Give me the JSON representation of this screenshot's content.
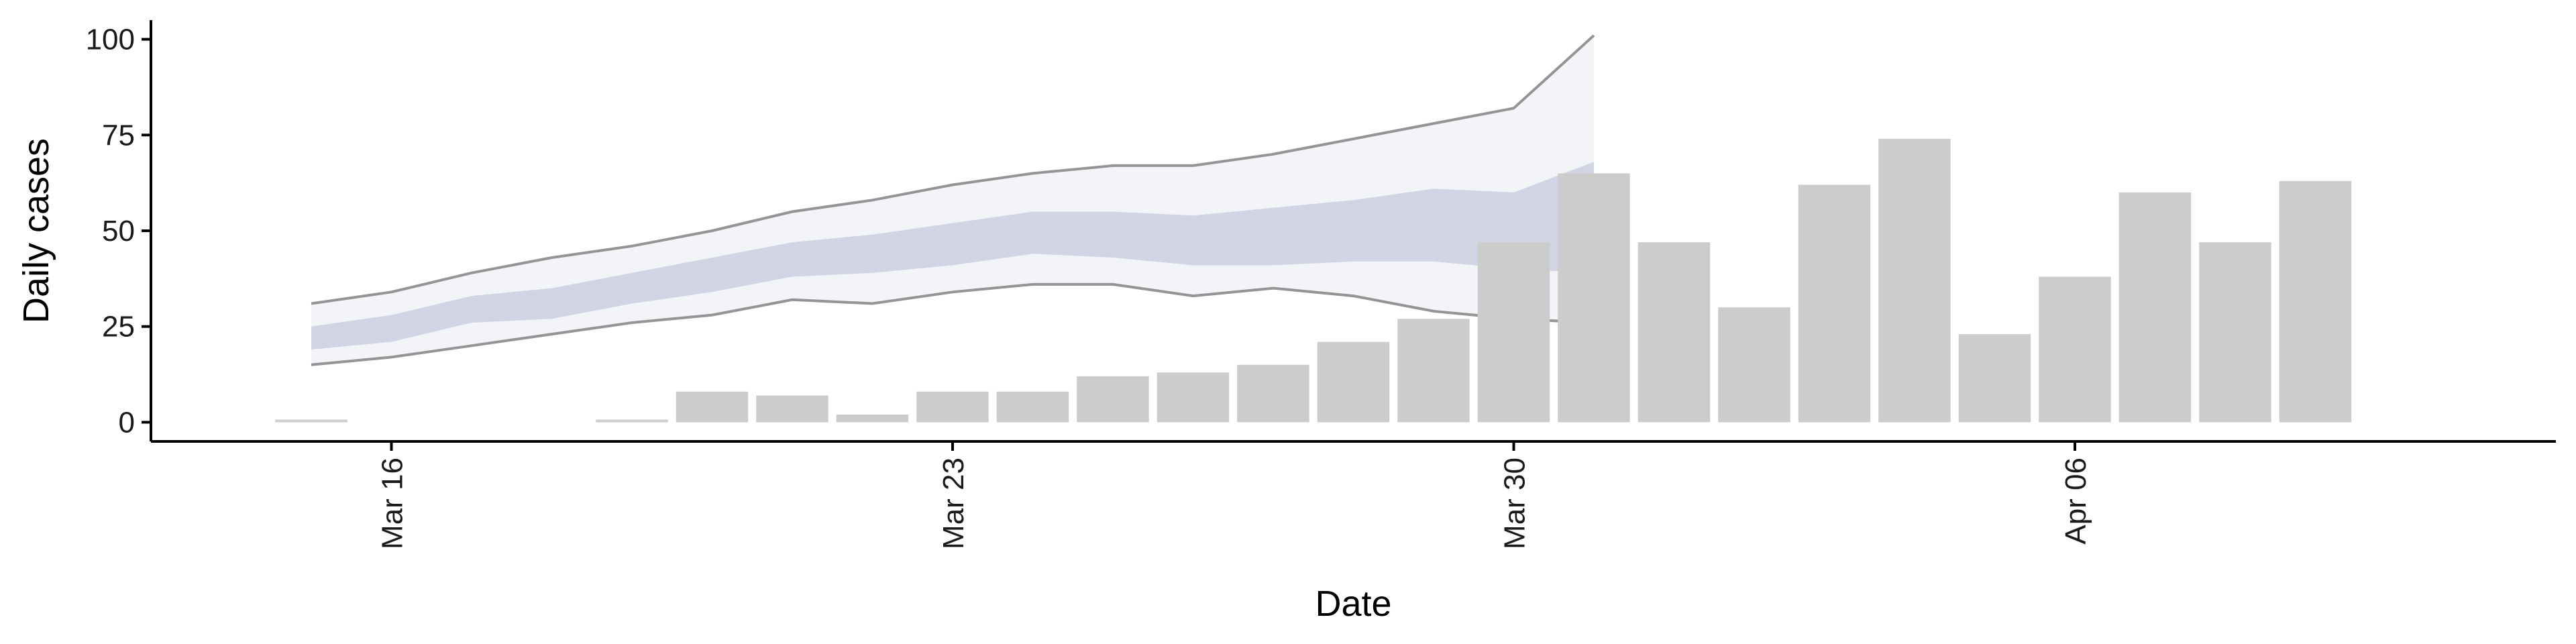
{
  "chart_data": {
    "type": "bar",
    "xlabel": "Date",
    "ylabel": "Daily cases",
    "ylim": [
      -5,
      105
    ],
    "yticks": [
      0,
      25,
      50,
      75,
      100
    ],
    "xticks": [
      {
        "date": "2020-03-16",
        "label": "Mar 16"
      },
      {
        "date": "2020-03-23",
        "label": "Mar 23"
      },
      {
        "date": "2020-03-30",
        "label": "Mar 30"
      },
      {
        "date": "2020-04-06",
        "label": "Apr 06"
      }
    ],
    "xlim": [
      "2020-03-13",
      "2020-04-12"
    ],
    "grid": false,
    "colors": {
      "bars": "#cccccc",
      "outer_band": "#eef0f5",
      "inner_band": "#c5cade",
      "band_lines": "#8a8a8a",
      "axis": "#000000"
    },
    "bars": [
      {
        "date": "2020-03-15",
        "value": 0
      },
      {
        "date": "2020-03-19",
        "value": 0
      },
      {
        "date": "2020-03-20",
        "value": 8
      },
      {
        "date": "2020-03-21",
        "value": 7
      },
      {
        "date": "2020-03-22",
        "value": 2
      },
      {
        "date": "2020-03-23",
        "value": 8
      },
      {
        "date": "2020-03-24",
        "value": 8
      },
      {
        "date": "2020-03-25",
        "value": 12
      },
      {
        "date": "2020-03-26",
        "value": 13
      },
      {
        "date": "2020-03-27",
        "value": 15
      },
      {
        "date": "2020-03-28",
        "value": 21
      },
      {
        "date": "2020-03-29",
        "value": 27
      },
      {
        "date": "2020-03-30",
        "value": 47
      },
      {
        "date": "2020-03-31",
        "value": 65
      },
      {
        "date": "2020-04-01",
        "value": 47
      },
      {
        "date": "2020-04-02",
        "value": 30
      },
      {
        "date": "2020-04-03",
        "value": 62
      },
      {
        "date": "2020-04-04",
        "value": 74
      },
      {
        "date": "2020-04-05",
        "value": 23
      },
      {
        "date": "2020-04-06",
        "value": 38
      },
      {
        "date": "2020-04-07",
        "value": 60
      },
      {
        "date": "2020-04-08",
        "value": 47
      },
      {
        "date": "2020-04-09",
        "value": 63
      }
    ],
    "forecast_band": [
      {
        "date": "2020-03-15",
        "outer_lo": 15,
        "inner_lo": 19,
        "inner_hi": 25,
        "outer_hi": 31
      },
      {
        "date": "2020-03-16",
        "outer_lo": 17,
        "inner_lo": 21,
        "inner_hi": 28,
        "outer_hi": 34
      },
      {
        "date": "2020-03-17",
        "outer_lo": 20,
        "inner_lo": 26,
        "inner_hi": 33,
        "outer_hi": 39
      },
      {
        "date": "2020-03-18",
        "outer_lo": 23,
        "inner_lo": 27,
        "inner_hi": 35,
        "outer_hi": 43
      },
      {
        "date": "2020-03-19",
        "outer_lo": 26,
        "inner_lo": 31,
        "inner_hi": 39,
        "outer_hi": 46
      },
      {
        "date": "2020-03-20",
        "outer_lo": 28,
        "inner_lo": 34,
        "inner_hi": 43,
        "outer_hi": 50
      },
      {
        "date": "2020-03-21",
        "outer_lo": 32,
        "inner_lo": 38,
        "inner_hi": 47,
        "outer_hi": 55
      },
      {
        "date": "2020-03-22",
        "outer_lo": 31,
        "inner_lo": 39,
        "inner_hi": 49,
        "outer_hi": 58
      },
      {
        "date": "2020-03-23",
        "outer_lo": 34,
        "inner_lo": 41,
        "inner_hi": 52,
        "outer_hi": 62
      },
      {
        "date": "2020-03-24",
        "outer_lo": 36,
        "inner_lo": 44,
        "inner_hi": 55,
        "outer_hi": 65
      },
      {
        "date": "2020-03-25",
        "outer_lo": 36,
        "inner_lo": 43,
        "inner_hi": 55,
        "outer_hi": 67
      },
      {
        "date": "2020-03-26",
        "outer_lo": 33,
        "inner_lo": 41,
        "inner_hi": 54,
        "outer_hi": 67
      },
      {
        "date": "2020-03-27",
        "outer_lo": 35,
        "inner_lo": 41,
        "inner_hi": 56,
        "outer_hi": 70
      },
      {
        "date": "2020-03-28",
        "outer_lo": 33,
        "inner_lo": 42,
        "inner_hi": 58,
        "outer_hi": 74
      },
      {
        "date": "2020-03-29",
        "outer_lo": 29,
        "inner_lo": 42,
        "inner_hi": 61,
        "outer_hi": 78
      },
      {
        "date": "2020-03-30",
        "outer_lo": 27,
        "inner_lo": 40,
        "inner_hi": 60,
        "outer_hi": 82
      },
      {
        "date": "2020-03-31",
        "outer_lo": 26,
        "inner_lo": 39,
        "inner_hi": 68,
        "outer_hi": 101
      }
    ]
  }
}
